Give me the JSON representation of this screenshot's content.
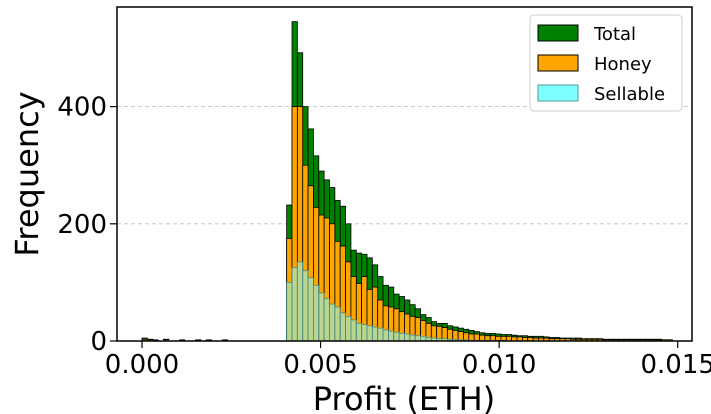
{
  "chart_data": {
    "type": "bar",
    "subtype": "stacked-histogram",
    "xlabel": "Profit (ETH)",
    "ylabel": "Frequency",
    "xlim": [
      -0.0007,
      0.0154
    ],
    "ylim": [
      0,
      570
    ],
    "xticks": [
      "0.000",
      "0.005",
      "0.010",
      "0.015"
    ],
    "yticks": [
      "0",
      "200",
      "400"
    ],
    "grid": "horizontal dashed",
    "legend_position": "top-right",
    "bin_width": 0.00015,
    "bin_starts": [
      0.0,
      0.00015,
      0.0003,
      0.0006,
      0.00105,
      0.0015,
      0.0018,
      0.00225,
      0.00405,
      0.0042,
      0.00435,
      0.0045,
      0.00465,
      0.0048,
      0.00495,
      0.0051,
      0.00525,
      0.0054,
      0.00555,
      0.0057,
      0.00585,
      0.006,
      0.00615,
      0.0063,
      0.00645,
      0.0066,
      0.00675,
      0.0069,
      0.00705,
      0.0072,
      0.00735,
      0.0075,
      0.00765,
      0.0078,
      0.00795,
      0.0081,
      0.00825,
      0.0084,
      0.00855,
      0.0087,
      0.00885,
      0.009,
      0.00915,
      0.0093,
      0.00945,
      0.0096,
      0.00975,
      0.0099,
      0.01005,
      0.0102,
      0.01035,
      0.0105,
      0.01065,
      0.0108,
      0.01095,
      0.0111,
      0.01125,
      0.0114,
      0.01155,
      0.0117,
      0.01185,
      0.012,
      0.01215,
      0.0123,
      0.01245,
      0.0126,
      0.01275,
      0.0129,
      0.01305,
      0.0132,
      0.01335,
      0.0135,
      0.01365,
      0.0138,
      0.01395,
      0.0141,
      0.01425,
      0.0144,
      0.01455,
      0.0147
    ],
    "series": [
      {
        "name": "Total",
        "color": "#008000",
        "values": [
          5,
          3,
          2,
          3,
          2,
          2,
          2,
          2,
          232,
          545,
          492,
          400,
          362,
          316,
          290,
          275,
          262,
          240,
          230,
          200,
          155,
          150,
          148,
          142,
          130,
          110,
          95,
          92,
          80,
          76,
          70,
          62,
          55,
          45,
          40,
          33,
          30,
          30,
          26,
          24,
          22,
          20,
          18,
          16,
          14,
          13,
          13,
          12,
          11,
          11,
          10,
          9,
          9,
          8,
          8,
          8,
          7,
          6,
          6,
          5,
          5,
          5,
          5,
          4,
          4,
          4,
          4,
          3,
          3,
          3,
          3,
          3,
          3,
          3,
          3,
          3,
          3,
          3,
          2,
          2
        ]
      },
      {
        "name": "Honey",
        "color": "#FFA500",
        "values": [
          3,
          2,
          1,
          2,
          1,
          1,
          1,
          1,
          175,
          400,
          400,
          300,
          265,
          228,
          215,
          210,
          200,
          170,
          162,
          135,
          110,
          98,
          110,
          88,
          92,
          70,
          60,
          58,
          55,
          50,
          46,
          42,
          40,
          35,
          30,
          26,
          25,
          23,
          20,
          18,
          16,
          14,
          12,
          12,
          10,
          9,
          9,
          8,
          8,
          8,
          7,
          7,
          6,
          6,
          5,
          5,
          5,
          4,
          4,
          4,
          4,
          3,
          3,
          3,
          3,
          3,
          3,
          2,
          2,
          2,
          2,
          2,
          2,
          2,
          2,
          2,
          2,
          2,
          2,
          2
        ]
      },
      {
        "name": "Sellable",
        "color": "#7FFFFF",
        "values": [
          1,
          1,
          0,
          1,
          0,
          0,
          0,
          0,
          100,
          125,
          135,
          120,
          108,
          95,
          82,
          72,
          63,
          58,
          48,
          42,
          36,
          30,
          28,
          26,
          24,
          22,
          19,
          17,
          15,
          13,
          12,
          10,
          9,
          8,
          6,
          5,
          4,
          4,
          3,
          2,
          2,
          2,
          1,
          1,
          1,
          1,
          1,
          1,
          1,
          0,
          0,
          0,
          0,
          0,
          0,
          0,
          0,
          0,
          0,
          0,
          0,
          0,
          0,
          0,
          0,
          0,
          0,
          0,
          0,
          0,
          0,
          0,
          0,
          0,
          0,
          0,
          0,
          0,
          0,
          0
        ]
      }
    ]
  }
}
